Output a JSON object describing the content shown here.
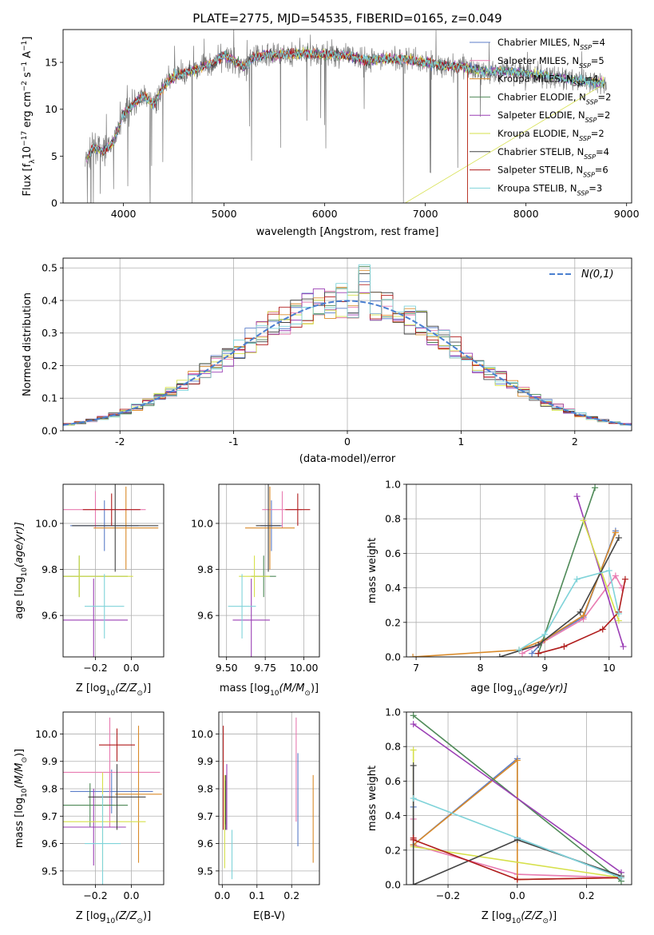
{
  "chart_data": [
    {
      "id": "spectrum",
      "type": "line",
      "title": "PLATE=2775, MJD=54535, FIBERID=0165, z=0.049",
      "xlabel": "wavelength [Angstrom, rest frame]",
      "ylabel": "Flux [f",
      "ylabel_parts": [
        "Flux [f",
        "λ",
        "10",
        "−17",
        " erg cm",
        "−2",
        " s",
        "−1",
        " A",
        "−1",
        "]"
      ],
      "xlim": [
        3400,
        9050
      ],
      "ylim": [
        0,
        18.5
      ],
      "xticks": [
        4000,
        5000,
        6000,
        7000,
        8000,
        9000
      ],
      "yticks": [
        0,
        5,
        10,
        15
      ],
      "legend_position": "top-right",
      "continuum": [
        [
          3630,
          4.5
        ],
        [
          3700,
          6.0
        ],
        [
          3800,
          5.5
        ],
        [
          3900,
          6.5
        ],
        [
          4000,
          9.5
        ],
        [
          4100,
          10.5
        ],
        [
          4200,
          11.5
        ],
        [
          4300,
          10.5
        ],
        [
          4400,
          12.5
        ],
        [
          4500,
          13.5
        ],
        [
          4700,
          14.2
        ],
        [
          4900,
          15.0
        ],
        [
          5000,
          15.8
        ],
        [
          5200,
          14.5
        ],
        [
          5300,
          15.6
        ],
        [
          5500,
          15.8
        ],
        [
          5700,
          15.9
        ],
        [
          5800,
          16.0
        ],
        [
          6000,
          15.8
        ],
        [
          6200,
          15.8
        ],
        [
          6400,
          15.2
        ],
        [
          6600,
          15.4
        ],
        [
          6800,
          15.3
        ],
        [
          7000,
          15.0
        ],
        [
          7200,
          14.6
        ],
        [
          7400,
          14.5
        ],
        [
          7600,
          14.0
        ],
        [
          7800,
          14.1
        ],
        [
          8000,
          13.8
        ],
        [
          8200,
          13.6
        ],
        [
          8400,
          13.2
        ],
        [
          8600,
          13.0
        ],
        [
          8800,
          12.8
        ]
      ],
      "series": [
        {
          "name": "Chabrier MILES, N",
          "nssp": "4",
          "color": "#5b7ec9"
        },
        {
          "name": "Salpeter MILES, N",
          "nssp": "5",
          "color": "#e87bb1"
        },
        {
          "name": "Kroupa MILES, N",
          "nssp": "4",
          "color": "#d98a2a"
        },
        {
          "name": "Chabrier ELODIE, N",
          "nssp": "2",
          "color": "#4f8a58"
        },
        {
          "name": "Salpeter ELODIE, N",
          "nssp": "2",
          "color": "#9b3fb5"
        },
        {
          "name": "Kroupa ELODIE, N",
          "nssp": "2",
          "color": "#d6e04a"
        },
        {
          "name": "Chabrier STELIB, N",
          "nssp": "4",
          "color": "#444444"
        },
        {
          "name": "Salpeter STELIB, N",
          "nssp": "6",
          "color": "#b01c1c"
        },
        {
          "name": "Kroupa STELIB, N",
          "nssp": "3",
          "color": "#7fd3d9"
        }
      ],
      "nssp_label": "SSP"
    },
    {
      "id": "residuals",
      "type": "histogram",
      "xlabel": "(data-model)/error",
      "ylabel": "Normed distribution",
      "xlim": [
        -2.5,
        2.5
      ],
      "ylim": [
        0,
        0.53
      ],
      "xticks": [
        -2,
        -1,
        0,
        1,
        2
      ],
      "yticks": [
        0.0,
        0.1,
        0.2,
        0.3,
        0.4,
        0.5
      ],
      "grid": true,
      "legend_position": "top-right",
      "gaussian_label": "N(0,1)",
      "gaussian_color": "#4a7fd0",
      "bin_width": 0.1
    },
    {
      "id": "z_vs_age",
      "type": "errorbar",
      "xlabel": "Z [log",
      "xlabel_parts": [
        "Z [log",
        "10",
        "(Z/Z",
        "⊙",
        ")]"
      ],
      "ylabel_parts": [
        "age  [log",
        "10",
        "(age/yr)]"
      ],
      "xlim": [
        -0.38,
        0.18
      ],
      "ylim": [
        9.42,
        10.17
      ],
      "xticks": [
        -0.2,
        0.0
      ],
      "xtick_labels": [
        "−0.2",
        "0.0"
      ],
      "yticks": [
        9.6,
        9.8,
        10.0
      ],
      "grid": true,
      "points": [
        {
          "x": -0.15,
          "xerr": 0.19,
          "y": 9.99,
          "yerr": 0.11,
          "color": "#5b7ec9"
        },
        {
          "x": -0.2,
          "xerr": 0.28,
          "y": 10.06,
          "yerr": 0.08,
          "color": "#e87bb1"
        },
        {
          "x": -0.03,
          "xerr": 0.18,
          "y": 9.98,
          "yerr": 0.18,
          "color": "#d98a2a"
        },
        {
          "x": -0.29,
          "xerr": 0.27,
          "y": 9.77,
          "yerr": 0.09,
          "color": "#4f8a58"
        },
        {
          "x": -0.21,
          "xerr": 0.19,
          "y": 9.58,
          "yerr": 0.18,
          "color": "#9b3fb5"
        },
        {
          "x": -0.29,
          "xerr": 0.3,
          "y": 9.77,
          "yerr": 0.09,
          "color": "#d6e04a"
        },
        {
          "x": -0.09,
          "xerr": 0.24,
          "y": 9.99,
          "yerr": 0.2,
          "color": "#444444"
        },
        {
          "x": -0.11,
          "xerr": 0.16,
          "y": 10.06,
          "yerr": 0.07,
          "color": "#b01c1c"
        },
        {
          "x": -0.15,
          "xerr": 0.11,
          "y": 9.64,
          "yerr": 0.14,
          "color": "#7fd3d9"
        }
      ]
    },
    {
      "id": "mass_vs_age",
      "type": "errorbar",
      "xlabel_parts": [
        "mass [log",
        "10",
        "(M/M",
        "⊙",
        ")]"
      ],
      "xlim": [
        9.45,
        10.1
      ],
      "ylim": [
        9.42,
        10.17
      ],
      "xticks": [
        9.5,
        9.75,
        10.0
      ],
      "xtick_labels": [
        "9.50",
        "9.75",
        "10.00"
      ],
      "yticks": [
        9.6,
        9.8,
        10.0
      ],
      "grid": true,
      "points": [
        {
          "x": 9.79,
          "xerr": 0.07,
          "y": 9.99,
          "yerr": 0.11,
          "color": "#5b7ec9"
        },
        {
          "x": 9.86,
          "xerr": 0.13,
          "y": 10.06,
          "yerr": 0.08,
          "color": "#e87bb1"
        },
        {
          "x": 9.78,
          "xerr": 0.16,
          "y": 9.98,
          "yerr": 0.18,
          "color": "#d98a2a"
        },
        {
          "x": 9.74,
          "xerr": 0.08,
          "y": 9.77,
          "yerr": 0.09,
          "color": "#4f8a58"
        },
        {
          "x": 9.66,
          "xerr": 0.12,
          "y": 9.58,
          "yerr": 0.18,
          "color": "#9b3fb5"
        },
        {
          "x": 9.68,
          "xerr": 0.1,
          "y": 9.77,
          "yerr": 0.09,
          "color": "#d6e04a"
        },
        {
          "x": 9.77,
          "xerr": 0.08,
          "y": 9.99,
          "yerr": 0.2,
          "color": "#444444"
        },
        {
          "x": 9.96,
          "xerr": 0.08,
          "y": 10.06,
          "yerr": 0.07,
          "color": "#b01c1c"
        },
        {
          "x": 9.6,
          "xerr": 0.09,
          "y": 9.64,
          "yerr": 0.14,
          "color": "#7fd3d9"
        }
      ]
    },
    {
      "id": "age_weights",
      "type": "line",
      "xlabel_parts": [
        "age  [log",
        "10",
        "(age/yr)]"
      ],
      "ylabel": "mass weight",
      "xlim": [
        6.85,
        10.35
      ],
      "ylim": [
        0,
        1.0
      ],
      "xticks": [
        7,
        8,
        9,
        10
      ],
      "yticks": [
        0.0,
        0.2,
        0.4,
        0.6,
        0.8,
        1.0
      ],
      "grid": true,
      "series": [
        {
          "color": "#5b7ec9",
          "points": [
            [
              8.8,
              0.02
            ],
            [
              9.0,
              0.1
            ],
            [
              9.6,
              0.23
            ],
            [
              10.1,
              0.73
            ]
          ]
        },
        {
          "color": "#e87bb1",
          "points": [
            [
              8.65,
              0.02
            ],
            [
              8.95,
              0.08
            ],
            [
              9.6,
              0.22
            ],
            [
              10.1,
              0.47
            ],
            [
              10.2,
              0.4
            ]
          ]
        },
        {
          "color": "#d98a2a",
          "points": [
            [
              6.95,
              0.0
            ],
            [
              8.6,
              0.04
            ],
            [
              9.0,
              0.1
            ],
            [
              9.6,
              0.24
            ],
            [
              10.1,
              0.72
            ]
          ]
        },
        {
          "color": "#4f8a58",
          "points": [
            [
              8.9,
              0.02
            ],
            [
              9.78,
              0.98
            ]
          ]
        },
        {
          "color": "#9b3fb5",
          "points": [
            [
              9.5,
              0.93
            ],
            [
              10.22,
              0.06
            ]
          ]
        },
        {
          "color": "#d6e04a",
          "points": [
            [
              9.6,
              0.79
            ],
            [
              10.15,
              0.21
            ]
          ]
        },
        {
          "color": "#444444",
          "points": [
            [
              8.3,
              0.0
            ],
            [
              8.9,
              0.07
            ],
            [
              9.55,
              0.26
            ],
            [
              10.15,
              0.69
            ]
          ]
        },
        {
          "color": "#b01c1c",
          "points": [
            [
              8.9,
              0.02
            ],
            [
              9.3,
              0.06
            ],
            [
              9.9,
              0.16
            ],
            [
              10.15,
              0.26
            ],
            [
              10.25,
              0.45
            ]
          ]
        },
        {
          "color": "#7fd3d9",
          "points": [
            [
              8.6,
              0.04
            ],
            [
              9.0,
              0.13
            ],
            [
              9.5,
              0.45
            ],
            [
              10.0,
              0.5
            ],
            [
              10.15,
              0.25
            ]
          ]
        }
      ]
    },
    {
      "id": "z_vs_mass",
      "type": "errorbar",
      "xlabel_parts": [
        "Z [log",
        "10",
        "(Z/Z",
        "⊙",
        ")]"
      ],
      "ylabel_parts": [
        "mass [log",
        "10",
        "(M/M",
        "⊙",
        ")]"
      ],
      "xlim": [
        -0.38,
        0.18
      ],
      "ylim": [
        9.45,
        10.08
      ],
      "xticks": [
        -0.2,
        0.0
      ],
      "xtick_labels": [
        "−0.2",
        "0.0"
      ],
      "yticks": [
        9.5,
        9.6,
        9.7,
        9.8,
        9.9,
        10.0
      ],
      "grid": true,
      "points": [
        {
          "x": -0.11,
          "xerr": 0.23,
          "y": 9.79,
          "yerr": 0.08,
          "color": "#5b7ec9"
        },
        {
          "x": -0.12,
          "xerr": 0.28,
          "y": 9.86,
          "yerr": 0.2,
          "color": "#e87bb1"
        },
        {
          "x": 0.04,
          "xerr": 0.13,
          "y": 9.78,
          "yerr": 0.25,
          "color": "#d98a2a"
        },
        {
          "x": -0.23,
          "xerr": 0.21,
          "y": 9.74,
          "yerr": 0.08,
          "color": "#4f8a58"
        },
        {
          "x": -0.21,
          "xerr": 0.18,
          "y": 9.66,
          "yerr": 0.14,
          "color": "#9b3fb5"
        },
        {
          "x": -0.16,
          "xerr": 0.24,
          "y": 9.68,
          "yerr": 0.18,
          "color": "#d6e04a"
        },
        {
          "x": -0.08,
          "xerr": 0.16,
          "y": 9.77,
          "yerr": 0.12,
          "color": "#444444"
        },
        {
          "x": -0.08,
          "xerr": 0.1,
          "y": 9.96,
          "yerr": 0.06,
          "color": "#b01c1c"
        },
        {
          "x": -0.16,
          "xerr": 0.1,
          "y": 9.6,
          "yerr": 0.18,
          "color": "#7fd3d9"
        }
      ]
    },
    {
      "id": "ebv_vs_mass",
      "type": "errorbar",
      "xlabel": "E(B-V)",
      "xlim": [
        -0.01,
        0.28
      ],
      "ylim": [
        9.45,
        10.08
      ],
      "xticks": [
        0.0,
        0.1,
        0.2
      ],
      "xtick_labels": [
        "0.0",
        "0.1",
        "0.2"
      ],
      "yticks": [
        9.5,
        9.6,
        9.7,
        9.8,
        9.9,
        10.0
      ],
      "grid": true,
      "points": [
        {
          "x": 0.218,
          "y": 9.76,
          "yerr": 0.17,
          "color": "#5b7ec9"
        },
        {
          "x": 0.213,
          "y": 9.87,
          "yerr": 0.19,
          "color": "#e87bb1"
        },
        {
          "x": 0.262,
          "y": 9.69,
          "yerr": 0.16,
          "color": "#d98a2a"
        },
        {
          "x": 0.008,
          "y": 9.75,
          "yerr": 0.08,
          "color": "#4f8a58"
        },
        {
          "x": 0.013,
          "y": 9.77,
          "yerr": 0.12,
          "color": "#9b3fb5"
        },
        {
          "x": 0.007,
          "y": 9.68,
          "yerr": 0.17,
          "color": "#d6e04a"
        },
        {
          "x": 0.01,
          "y": 9.75,
          "yerr": 0.1,
          "color": "#444444"
        },
        {
          "x": 0.003,
          "y": 9.84,
          "yerr": 0.19,
          "color": "#b01c1c"
        },
        {
          "x": 0.028,
          "y": 9.56,
          "yerr": 0.09,
          "color": "#7fd3d9"
        }
      ]
    },
    {
      "id": "z_weights",
      "type": "line",
      "xlabel_parts": [
        "Z [log",
        "10",
        "(Z/Z",
        "⊙",
        ")]"
      ],
      "ylabel": "mass weight",
      "xlim": [
        -0.32,
        0.33
      ],
      "ylim": [
        0,
        1.0
      ],
      "xticks": [
        -0.2,
        0.0,
        0.2
      ],
      "xtick_labels": [
        "−0.2",
        "0.0",
        "0.2"
      ],
      "yticks": [
        0.0,
        0.2,
        0.4,
        0.6,
        0.8,
        1.0
      ],
      "grid": true,
      "series": [
        {
          "color": "#5b7ec9",
          "points": [
            [
              -0.3,
              0.45
            ],
            [
              -0.3,
              0.23
            ],
            [
              0.0,
              0.73
            ],
            [
              0.0,
              0.27
            ],
            [
              0.3,
              0.04
            ]
          ]
        },
        {
          "color": "#e87bb1",
          "points": [
            [
              -0.3,
              0.38
            ],
            [
              -0.3,
              0.23
            ],
            [
              0.0,
              0.06
            ],
            [
              0.3,
              0.04
            ]
          ]
        },
        {
          "color": "#d98a2a",
          "points": [
            [
              -0.3,
              0.23
            ],
            [
              0.0,
              0.72
            ],
            [
              0.0,
              0.03
            ],
            [
              0.3,
              0.04
            ]
          ]
        },
        {
          "color": "#4f8a58",
          "points": [
            [
              -0.3,
              0.98
            ],
            [
              0.3,
              0.02
            ]
          ]
        },
        {
          "color": "#9b3fb5",
          "points": [
            [
              -0.3,
              0.93
            ],
            [
              0.3,
              0.07
            ]
          ]
        },
        {
          "color": "#d6e04a",
          "points": [
            [
              -0.3,
              0.78
            ],
            [
              -0.3,
              0.22
            ],
            [
              0.3,
              0.04
            ]
          ]
        },
        {
          "color": "#444444",
          "points": [
            [
              -0.3,
              0.69
            ],
            [
              -0.3,
              0.0
            ],
            [
              0.0,
              0.26
            ],
            [
              0.3,
              0.05
            ]
          ]
        },
        {
          "color": "#b01c1c",
          "points": [
            [
              -0.3,
              0.27
            ],
            [
              -0.3,
              0.26
            ],
            [
              0.0,
              0.03
            ],
            [
              0.3,
              0.04
            ]
          ]
        },
        {
          "color": "#7fd3d9",
          "points": [
            [
              -0.3,
              0.5
            ],
            [
              0.3,
              0.04
            ]
          ]
        }
      ]
    }
  ]
}
